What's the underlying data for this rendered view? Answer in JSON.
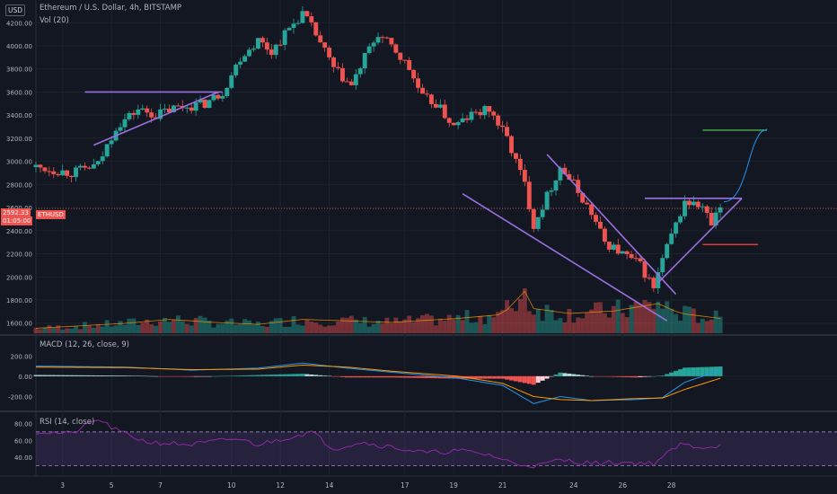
{
  "header": {
    "currency_badge": "USD",
    "title": "Ethereum / U.S. Dollar, 4h, BITSTAMP",
    "volume_label": "Vol (20)",
    "macd_label": "MACD (12, 26, close, 9)",
    "rsi_label": "RSI (14, close)"
  },
  "price_tag": {
    "price": "2592.33",
    "countdown": "01:05:00",
    "symbol": "ETHUSD"
  },
  "colors": {
    "background": "#131722",
    "up": "#26a69a",
    "down": "#ef5350",
    "trendline": "#9b6fe0",
    "target": "#4caf50",
    "stop": "#e53935",
    "projection": "#2196f3",
    "macd_line": "#2196f3",
    "signal_line": "#ff9800",
    "rsi_line": "#9c27b0"
  },
  "chart_data": [
    {
      "type": "candlestick",
      "title": "Ethereum / U.S. Dollar, 4h, BITSTAMP",
      "y_ticks": [
        "4200.00",
        "4000.00",
        "3800.00",
        "3600.00",
        "3400.00",
        "3200.00",
        "3000.00",
        "2800.00",
        "2600.00",
        "2400.00",
        "2200.00",
        "2000.00",
        "1800.00",
        "1600.00"
      ],
      "x_ticks": [
        "3",
        "5",
        "7",
        "10",
        "12",
        "14",
        "17",
        "19",
        "21",
        "24",
        "26",
        "28"
      ],
      "price_path": [
        {
          "x": 0,
          "v": 2950
        },
        {
          "x": 8,
          "v": 2900
        },
        {
          "x": 14,
          "v": 2970
        },
        {
          "x": 18,
          "v": 3300
        },
        {
          "x": 23,
          "v": 3450
        },
        {
          "x": 27,
          "v": 3400
        },
        {
          "x": 31,
          "v": 3460
        },
        {
          "x": 38,
          "v": 3500
        },
        {
          "x": 42,
          "v": 3600
        },
        {
          "x": 46,
          "v": 3900
        },
        {
          "x": 50,
          "v": 4050
        },
        {
          "x": 53,
          "v": 3950
        },
        {
          "x": 57,
          "v": 4150
        },
        {
          "x": 60,
          "v": 4280
        },
        {
          "x": 63,
          "v": 4100
        },
        {
          "x": 67,
          "v": 3800
        },
        {
          "x": 71,
          "v": 3650
        },
        {
          "x": 74,
          "v": 3900
        },
        {
          "x": 77,
          "v": 4100
        },
        {
          "x": 81,
          "v": 3950
        },
        {
          "x": 84,
          "v": 3800
        },
        {
          "x": 87,
          "v": 3550
        },
        {
          "x": 90,
          "v": 3500
        },
        {
          "x": 94,
          "v": 3300
        },
        {
          "x": 98,
          "v": 3400
        },
        {
          "x": 102,
          "v": 3450
        },
        {
          "x": 106,
          "v": 3200
        },
        {
          "x": 110,
          "v": 2800
        },
        {
          "x": 112,
          "v": 2450
        },
        {
          "x": 115,
          "v": 2700
        },
        {
          "x": 118,
          "v": 2950
        },
        {
          "x": 121,
          "v": 2800
        },
        {
          "x": 125,
          "v": 2550
        },
        {
          "x": 128,
          "v": 2300
        },
        {
          "x": 132,
          "v": 2200
        },
        {
          "x": 136,
          "v": 2100
        },
        {
          "x": 139,
          "v": 1900
        },
        {
          "x": 141,
          "v": 2150
        },
        {
          "x": 144,
          "v": 2450
        },
        {
          "x": 146,
          "v": 2650
        },
        {
          "x": 150,
          "v": 2600
        },
        {
          "x": 152,
          "v": 2450
        },
        {
          "x": 154,
          "v": 2592
        }
      ],
      "volume_profile": [
        {
          "x": 0,
          "v": 10
        },
        {
          "x": 20,
          "v": 20
        },
        {
          "x": 30,
          "v": 28
        },
        {
          "x": 40,
          "v": 22
        },
        {
          "x": 50,
          "v": 18
        },
        {
          "x": 60,
          "v": 28
        },
        {
          "x": 70,
          "v": 25
        },
        {
          "x": 80,
          "v": 22
        },
        {
          "x": 95,
          "v": 30
        },
        {
          "x": 105,
          "v": 38
        },
        {
          "x": 110,
          "v": 85
        },
        {
          "x": 112,
          "v": 50
        },
        {
          "x": 120,
          "v": 40
        },
        {
          "x": 130,
          "v": 45
        },
        {
          "x": 140,
          "v": 60
        },
        {
          "x": 145,
          "v": 40
        },
        {
          "x": 154,
          "v": 30
        }
      ],
      "annotations": {
        "ascending_triangle": {
          "top": 3600,
          "bottom_start": 3140,
          "bottom_end": 3600
        },
        "falling_wedge": {
          "upper_start": 3060,
          "upper_end": 1850,
          "lower_start": 2720,
          "lower_end": 1620
        },
        "breakout_resistance": 2680,
        "target_level": 3270,
        "stop_level": 2280,
        "projection_end": 3280
      }
    },
    {
      "type": "line",
      "title": "MACD (12, 26, close, 9)",
      "y_ticks": [
        "200.00",
        "0.00",
        "-200.00"
      ],
      "macd_path": [
        {
          "x": 0,
          "v": 100
        },
        {
          "x": 20,
          "v": 90
        },
        {
          "x": 35,
          "v": 60
        },
        {
          "x": 50,
          "v": 80
        },
        {
          "x": 60,
          "v": 130
        },
        {
          "x": 70,
          "v": 80
        },
        {
          "x": 80,
          "v": 40
        },
        {
          "x": 95,
          "v": -20
        },
        {
          "x": 105,
          "v": -90
        },
        {
          "x": 112,
          "v": -270
        },
        {
          "x": 118,
          "v": -200
        },
        {
          "x": 125,
          "v": -240
        },
        {
          "x": 135,
          "v": -230
        },
        {
          "x": 141,
          "v": -210
        },
        {
          "x": 146,
          "v": -60
        },
        {
          "x": 154,
          "v": 60
        }
      ],
      "signal_path": [
        {
          "x": 0,
          "v": 90
        },
        {
          "x": 20,
          "v": 85
        },
        {
          "x": 35,
          "v": 65
        },
        {
          "x": 50,
          "v": 70
        },
        {
          "x": 60,
          "v": 110
        },
        {
          "x": 70,
          "v": 90
        },
        {
          "x": 80,
          "v": 50
        },
        {
          "x": 95,
          "v": 0
        },
        {
          "x": 105,
          "v": -70
        },
        {
          "x": 112,
          "v": -200
        },
        {
          "x": 118,
          "v": -230
        },
        {
          "x": 125,
          "v": -240
        },
        {
          "x": 135,
          "v": -220
        },
        {
          "x": 141,
          "v": -215
        },
        {
          "x": 146,
          "v": -130
        },
        {
          "x": 154,
          "v": -20
        }
      ]
    },
    {
      "type": "line",
      "title": "RSI (14, close)",
      "y_ticks": [
        "80.00",
        "60.00",
        "40.00"
      ],
      "bands": [
        70,
        30
      ],
      "rsi_path": [
        {
          "x": 0,
          "v": 70
        },
        {
          "x": 8,
          "v": 68
        },
        {
          "x": 14,
          "v": 85
        },
        {
          "x": 18,
          "v": 72
        },
        {
          "x": 25,
          "v": 58
        },
        {
          "x": 35,
          "v": 55
        },
        {
          "x": 45,
          "v": 62
        },
        {
          "x": 50,
          "v": 55
        },
        {
          "x": 58,
          "v": 65
        },
        {
          "x": 62,
          "v": 70
        },
        {
          "x": 67,
          "v": 50
        },
        {
          "x": 73,
          "v": 58
        },
        {
          "x": 80,
          "v": 52
        },
        {
          "x": 88,
          "v": 45
        },
        {
          "x": 95,
          "v": 48
        },
        {
          "x": 102,
          "v": 43
        },
        {
          "x": 108,
          "v": 32
        },
        {
          "x": 113,
          "v": 30
        },
        {
          "x": 118,
          "v": 37
        },
        {
          "x": 125,
          "v": 33
        },
        {
          "x": 132,
          "v": 34
        },
        {
          "x": 139,
          "v": 33
        },
        {
          "x": 145,
          "v": 55
        },
        {
          "x": 150,
          "v": 52
        },
        {
          "x": 154,
          "v": 54
        }
      ]
    }
  ]
}
